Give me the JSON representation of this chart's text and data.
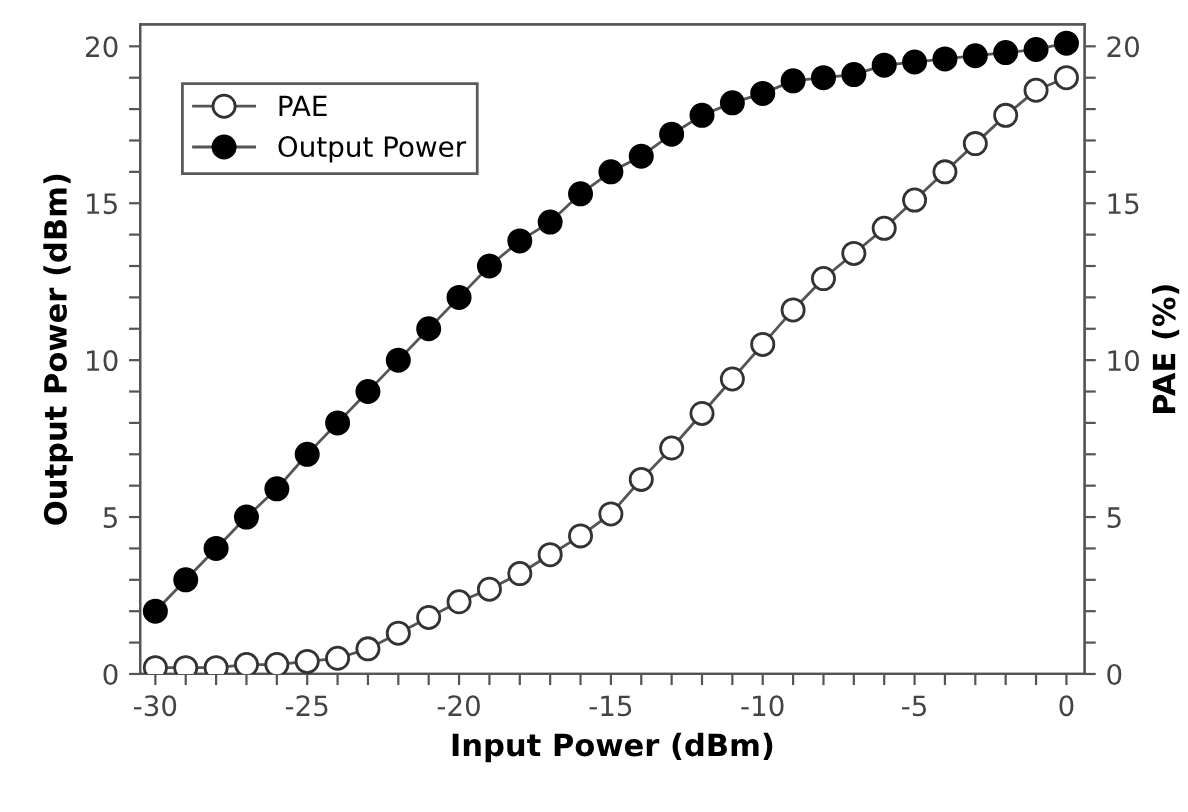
{
  "chart_data": {
    "type": "line",
    "xlabel": "Input Power (dBm)",
    "ylabel": "Output Power (dBm)",
    "y2label": "PAE (%)",
    "x": [
      -30,
      -29,
      -28,
      -27,
      -26,
      -25,
      -24,
      -23,
      -22,
      -21,
      -20,
      -19,
      -18,
      -17,
      -16,
      -15,
      -14,
      -13,
      -12,
      -11,
      -10,
      -9,
      -8,
      -7,
      -6,
      -5,
      -4,
      -3,
      -2,
      -1,
      0
    ],
    "series": [
      {
        "name": "PAE",
        "color": "#ffffff",
        "axis": "y2",
        "marker": "circle",
        "values": [
          0.2,
          0.2,
          0.2,
          0.3,
          0.3,
          0.4,
          0.5,
          0.8,
          1.3,
          1.8,
          2.3,
          2.7,
          3.2,
          3.8,
          4.4,
          5.1,
          6.2,
          7.2,
          8.3,
          9.4,
          10.5,
          11.6,
          12.6,
          13.4,
          14.2,
          15.1,
          16.0,
          16.9,
          17.8,
          18.6,
          19.0
        ]
      },
      {
        "name": "Output Power",
        "color": "#000000",
        "axis": "y",
        "marker": "circle",
        "values": [
          2,
          3,
          4,
          5,
          5.9,
          7,
          8,
          9,
          10,
          11,
          12,
          13,
          13.8,
          14.4,
          15.3,
          16.0,
          16.5,
          17.2,
          17.8,
          18.2,
          18.5,
          18.9,
          19.0,
          19.1,
          19.4,
          19.5,
          19.6,
          19.7,
          19.8,
          19.9,
          20.1
        ]
      }
    ],
    "xlim": [
      -30.5,
      0.6
    ],
    "ylim": [
      0,
      20.7
    ],
    "y2lim": [
      0,
      20.7
    ],
    "xticks": [
      -30,
      {
        "value": -29,
        "label": null
      },
      {
        "value": -28,
        "label": null
      },
      {
        "value": -27,
        "label": null
      },
      {
        "value": -26,
        "label": null
      },
      -25,
      {
        "value": -24,
        "label": null
      },
      {
        "value": -23,
        "label": null
      },
      {
        "value": -22,
        "label": null
      },
      {
        "value": -21,
        "label": null
      },
      -20,
      {
        "value": -19,
        "label": null
      },
      {
        "value": -18,
        "label": null
      },
      {
        "value": -17,
        "label": null
      },
      {
        "value": -16,
        "label": null
      },
      -15,
      {
        "value": -14,
        "label": null
      },
      {
        "value": -13,
        "label": null
      },
      {
        "value": -12,
        "label": null
      },
      {
        "value": -11,
        "label": null
      },
      -10,
      {
        "value": -9,
        "label": null
      },
      {
        "value": -8,
        "label": null
      },
      {
        "value": -7,
        "label": null
      },
      {
        "value": -6,
        "label": null
      },
      -5,
      {
        "value": -4,
        "label": null
      },
      {
        "value": -3,
        "label": null
      },
      {
        "value": -2,
        "label": null
      },
      {
        "value": -1,
        "label": null
      },
      0
    ],
    "yticks": [
      0,
      {
        "value": 1,
        "label": null
      },
      {
        "value": 2,
        "label": null
      },
      {
        "value": 3,
        "label": null
      },
      {
        "value": 4,
        "label": null
      },
      5,
      {
        "value": 6,
        "label": null
      },
      {
        "value": 7,
        "label": null
      },
      {
        "value": 8,
        "label": null
      },
      {
        "value": 9,
        "label": null
      },
      10,
      {
        "value": 11,
        "label": null
      },
      {
        "value": 12,
        "label": null
      },
      {
        "value": 13,
        "label": null
      },
      {
        "value": 14,
        "label": null
      },
      15,
      {
        "value": 16,
        "label": null
      },
      {
        "value": 17,
        "label": null
      },
      {
        "value": 18,
        "label": null
      },
      {
        "value": 19,
        "label": null
      },
      20
    ],
    "y2ticks": [
      0,
      {
        "value": 1,
        "label": null
      },
      {
        "value": 2,
        "label": null
      },
      {
        "value": 3,
        "label": null
      },
      {
        "value": 4,
        "label": null
      },
      5,
      {
        "value": 6,
        "label": null
      },
      {
        "value": 7,
        "label": null
      },
      {
        "value": 8,
        "label": null
      },
      {
        "value": 9,
        "label": null
      },
      10,
      {
        "value": 11,
        "label": null
      },
      {
        "value": 12,
        "label": null
      },
      {
        "value": 13,
        "label": null
      },
      {
        "value": 14,
        "label": null
      },
      15,
      {
        "value": 16,
        "label": null
      },
      {
        "value": 17,
        "label": null
      },
      {
        "value": 18,
        "label": null
      },
      {
        "value": 19,
        "label": null
      },
      20
    ],
    "grid": false,
    "legend": "top left",
    "line_style": "solid"
  }
}
